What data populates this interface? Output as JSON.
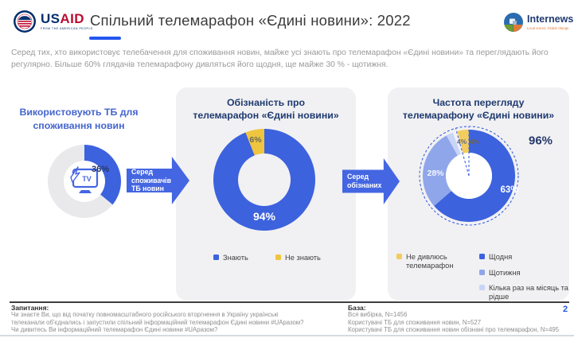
{
  "header": {
    "title": "Спільний телемарафон «Єдині новини»: 2022",
    "usaid": {
      "us": "US",
      "aid": "AID",
      "tagline": "FROM THE AMERICAN PEOPLE"
    },
    "internews": {
      "name": "Internews",
      "tagline": "Local voices. Global change."
    }
  },
  "intro": "Серед тих, хто використовує телебачення для споживання новин, майже усі знають про телемарафон «Єдині новини» та переглядають його регулярно. Більше 60% глядачів телемарафону дивляться його щодня, ще майже 30 % - щотижня.",
  "arrows": [
    {
      "label": "Серед\nспоживачів\nТБ новин"
    },
    {
      "label": "Серед\nобізнаних"
    }
  ],
  "colors": {
    "primary_blue": "#3D62DE",
    "medium_blue": "#8FA6EA",
    "light_blue": "#C9D5F6",
    "yellow": "#EFC53F",
    "yellow_light": "#F2CC5D",
    "gray_segment": "#E9E9EB",
    "panel_bg": "#F1F1F3",
    "heading_navy": "#1F3A70",
    "accent_underline": "#2456F0"
  },
  "chart_data": [
    {
      "type": "donut",
      "title": "Використовують ТБ для\nспоживання новин",
      "categories": [
        "Використовують ТБ для споживання новин",
        ""
      ],
      "values": [
        36,
        64
      ],
      "colors": [
        "#3D62DE",
        "#E9E9EB"
      ],
      "value_labels": [
        "36%"
      ],
      "center_icon": "tv",
      "center_icon_label": "TV"
    },
    {
      "type": "donut",
      "title": "Обізнаність про\nтелемарафон «Єдині новини»",
      "categories": [
        "Знають",
        "Не знають"
      ],
      "values": [
        94,
        6
      ],
      "colors": [
        "#3D62DE",
        "#EFC53F"
      ],
      "value_labels": [
        "94%",
        "6%"
      ],
      "legend_position": "bottom"
    },
    {
      "type": "donut",
      "title": "Частота перегляду\nтелемарафону «Єдині новини»",
      "categories": [
        "Щодня",
        "Щотижня",
        "Кілька раз на місяць та\nрідше",
        "Не дивлюсь\nтелемарафон"
      ],
      "values": [
        63,
        28,
        4,
        4
      ],
      "colors": [
        "#3D62DE",
        "#8FA6EA",
        "#C9D5F6",
        "#F2CC5D"
      ],
      "value_labels": [
        "63%",
        "28%",
        "4%",
        "4%"
      ],
      "annotation": "96%",
      "legend_position": "bottom"
    }
  ],
  "footer": {
    "questions_title": "Запитання:",
    "questions": "Чи знаєте Ви, що від початку повномасштабного російського вторгнення в Україну українські\nтелеканали об'єднались і запустили спільний інформаційний телемарафон Єдині новини #UAразом?\nЧи дивитесь Ви інформаційний телемарафон Єдині новини #UAразом?",
    "base_title": "База:",
    "base": "Вся вибірка, N=1456\nКористувачі ТБ для споживання новин,  N=527\nКористувачі ТБ для споживання новин обізнані про телемарафон, N=495",
    "page_number": "2"
  }
}
